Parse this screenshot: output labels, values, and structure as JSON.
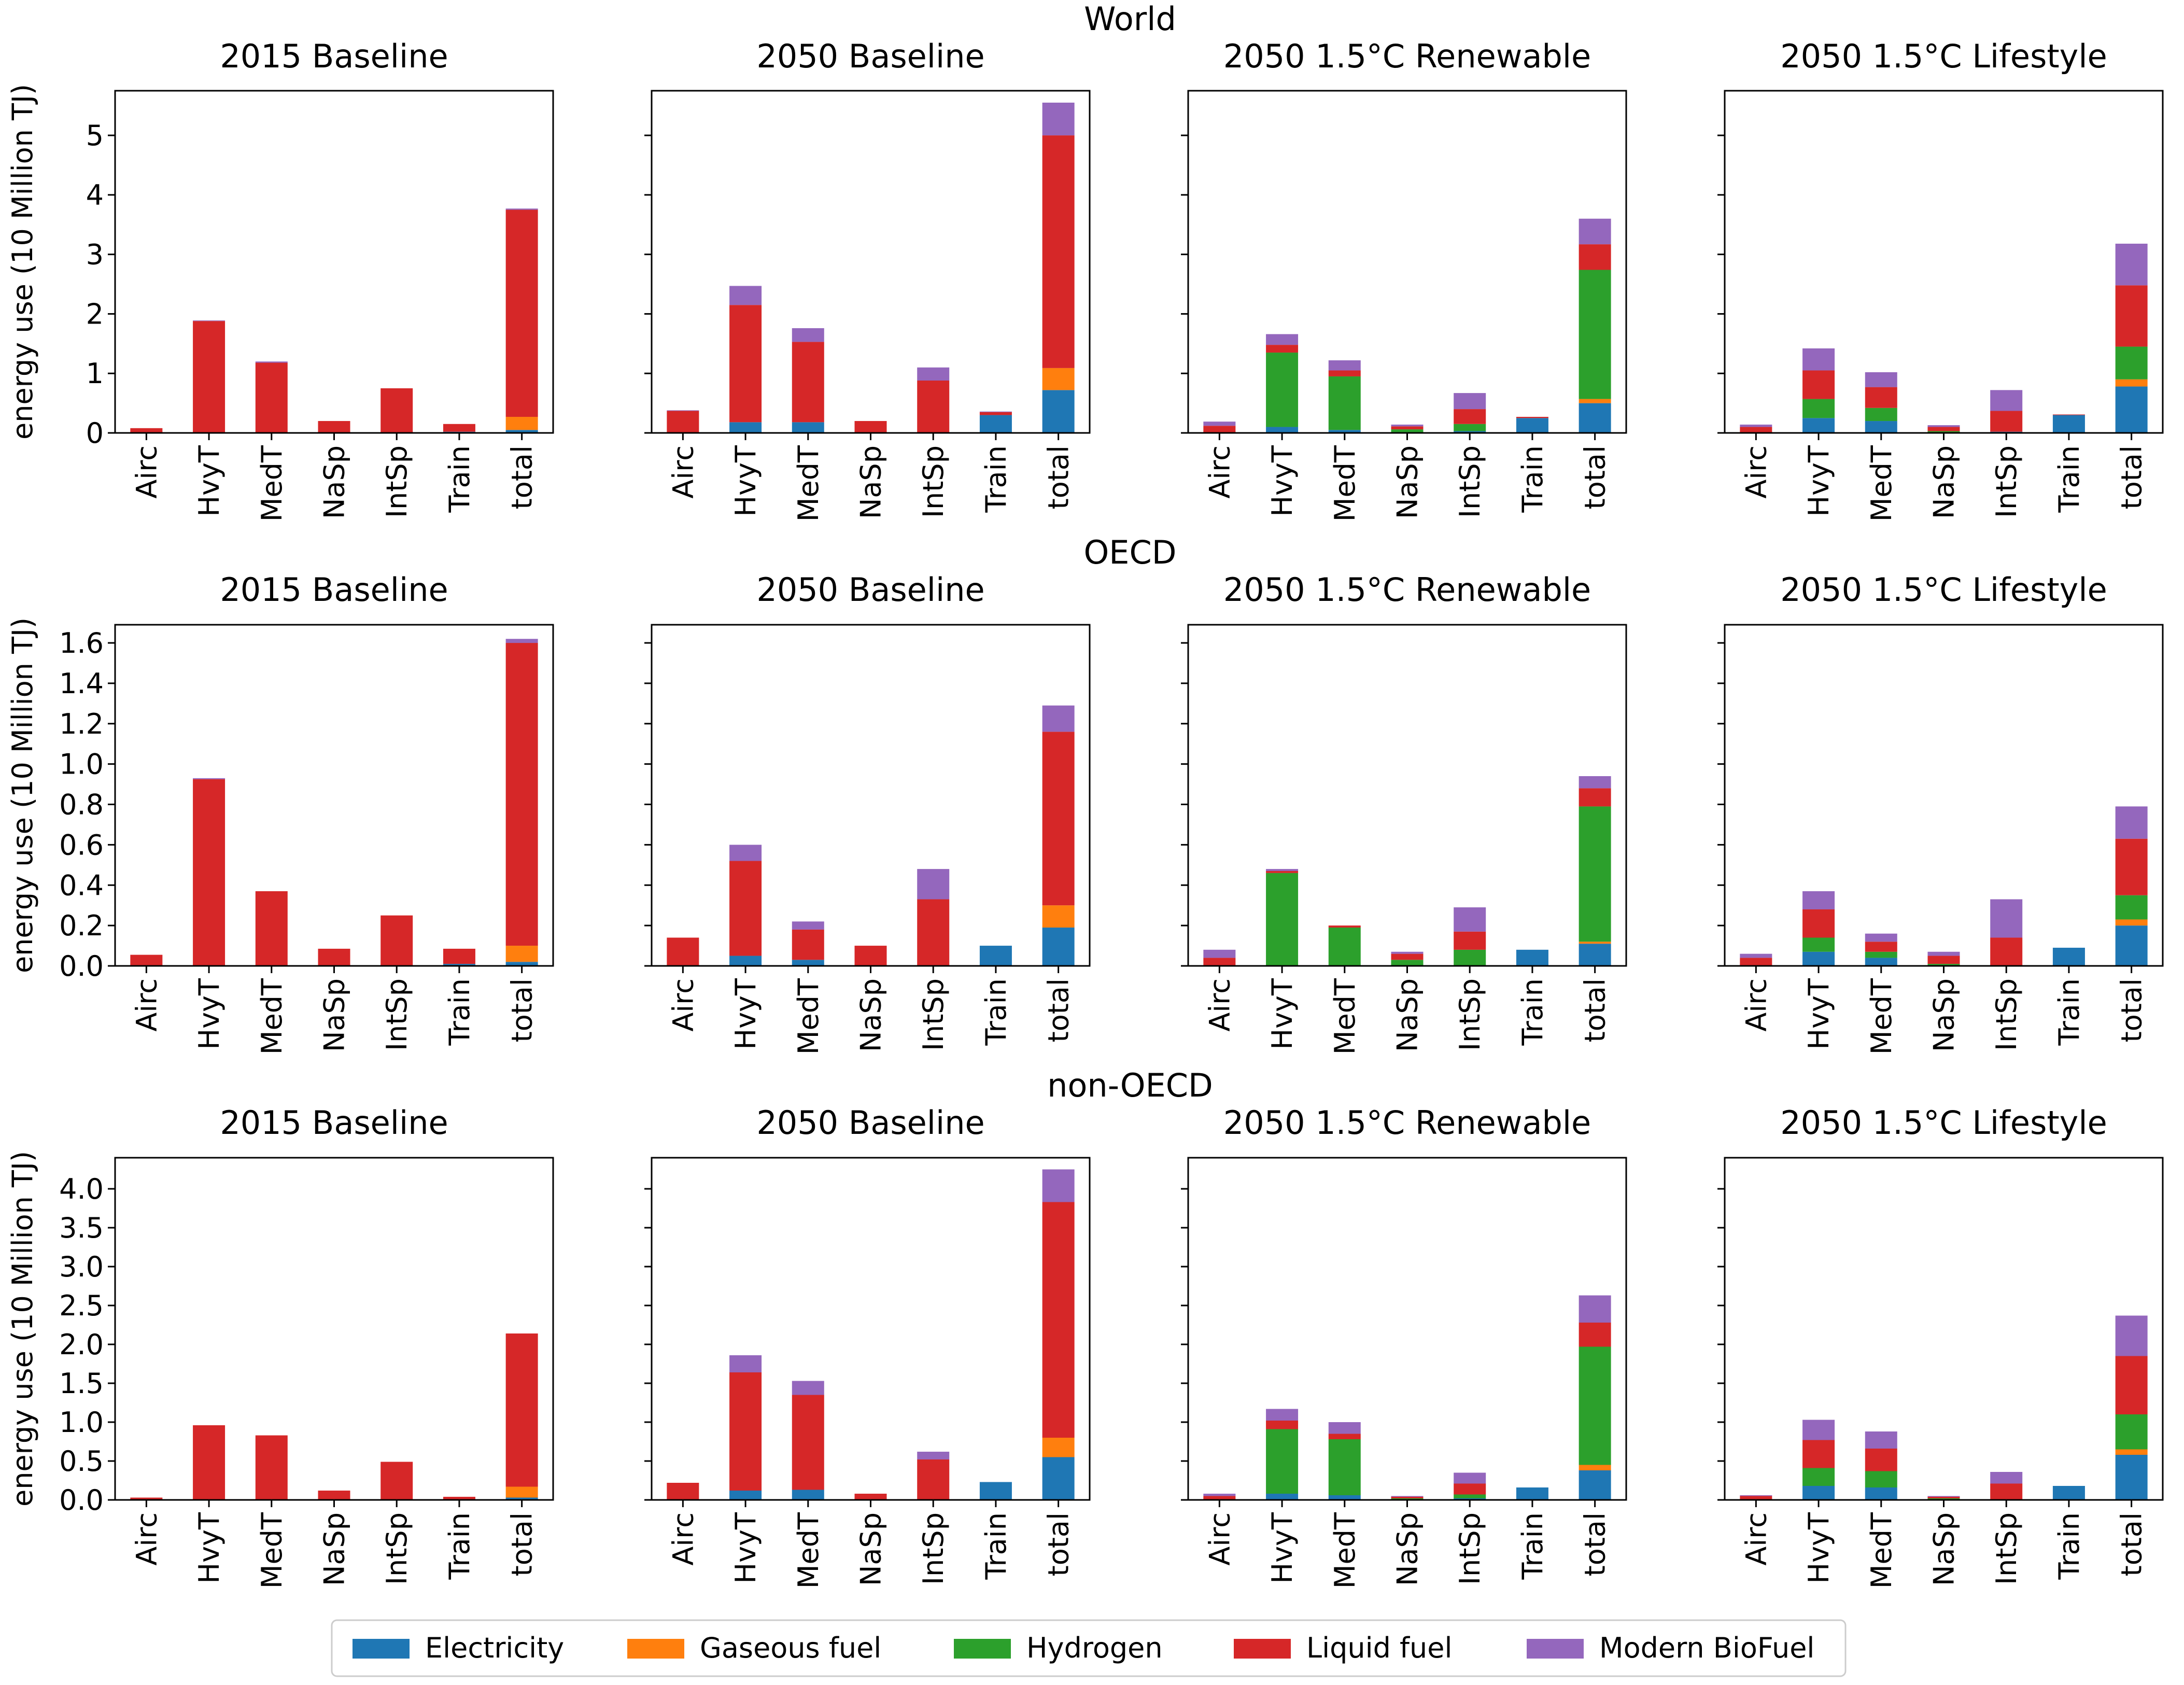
{
  "figure": {
    "ylabel": "energy use (10 Million TJ)"
  },
  "colors": {
    "Electricity": "#1f77b4",
    "Gaseous fuel": "#ff7f0e",
    "Hydrogen": "#2ca02c",
    "Liquid fuel": "#d62728",
    "Modern BioFuel": "#9467bd"
  },
  "legend": [
    "Electricity",
    "Gaseous fuel",
    "Hydrogen",
    "Liquid fuel",
    "Modern BioFuel"
  ],
  "chart_data": [
    {
      "type": "bar",
      "stacked": true,
      "region": "World",
      "ylabel": "energy use (10 Million TJ)",
      "ylim": [
        0,
        5.75
      ],
      "yticks": [
        0,
        1,
        2,
        3,
        4,
        5
      ],
      "ytick_labels": [
        "0",
        "1",
        "2",
        "3",
        "4",
        "5"
      ],
      "categories": [
        "Airc",
        "HvyT",
        "MedT",
        "NaSp",
        "IntSp",
        "Train",
        "total"
      ],
      "panels": [
        {
          "title": "2015 Baseline",
          "series": [
            {
              "name": "Electricity",
              "values": [
                0,
                0,
                0,
                0,
                0,
                0.02,
                0.05
              ]
            },
            {
              "name": "Gaseous fuel",
              "values": [
                0,
                0,
                0,
                0,
                0,
                0,
                0.22
              ]
            },
            {
              "name": "Hydrogen",
              "values": [
                0,
                0,
                0,
                0,
                0,
                0,
                0
              ]
            },
            {
              "name": "Liquid fuel",
              "values": [
                0.08,
                1.88,
                1.18,
                0.2,
                0.75,
                0.13,
                3.48
              ]
            },
            {
              "name": "Modern BioFuel",
              "values": [
                0,
                0.01,
                0.02,
                0,
                0,
                0,
                0.02
              ]
            }
          ]
        },
        {
          "title": "2050 Baseline",
          "series": [
            {
              "name": "Electricity",
              "values": [
                0,
                0.18,
                0.18,
                0,
                0,
                0.3,
                0.72
              ]
            },
            {
              "name": "Gaseous fuel",
              "values": [
                0,
                0,
                0,
                0,
                0,
                0,
                0.37
              ]
            },
            {
              "name": "Hydrogen",
              "values": [
                0,
                0,
                0,
                0,
                0,
                0,
                0
              ]
            },
            {
              "name": "Liquid fuel",
              "values": [
                0.37,
                1.97,
                1.35,
                0.2,
                0.88,
                0.05,
                3.91
              ]
            },
            {
              "name": "Modern BioFuel",
              "values": [
                0.01,
                0.32,
                0.23,
                0,
                0.22,
                0.01,
                0.55
              ]
            }
          ]
        },
        {
          "title": "2050 1.5°C Renewable",
          "series": [
            {
              "name": "Electricity",
              "values": [
                0,
                0.1,
                0.05,
                0,
                0.03,
                0.25,
                0.5
              ]
            },
            {
              "name": "Gaseous fuel",
              "values": [
                0,
                0,
                0,
                0,
                0,
                0,
                0.07
              ]
            },
            {
              "name": "Hydrogen",
              "values": [
                0,
                1.25,
                0.9,
                0.06,
                0.12,
                0,
                2.17
              ]
            },
            {
              "name": "Liquid fuel",
              "values": [
                0.12,
                0.13,
                0.1,
                0.05,
                0.25,
                0.02,
                0.43
              ]
            },
            {
              "name": "Modern BioFuel",
              "values": [
                0.07,
                0.18,
                0.17,
                0.03,
                0.27,
                0,
                0.43
              ]
            }
          ]
        },
        {
          "title": "2050 1.5°C Lifestyle",
          "series": [
            {
              "name": "Electricity",
              "values": [
                0,
                0.25,
                0.2,
                0,
                0.02,
                0.3,
                0.78
              ]
            },
            {
              "name": "Gaseous fuel",
              "values": [
                0,
                0,
                0,
                0,
                0,
                0,
                0.12
              ]
            },
            {
              "name": "Hydrogen",
              "values": [
                0,
                0.32,
                0.22,
                0.03,
                0,
                0,
                0.55
              ]
            },
            {
              "name": "Liquid fuel",
              "values": [
                0.1,
                0.48,
                0.35,
                0.07,
                0.35,
                0.01,
                1.03
              ]
            },
            {
              "name": "Modern BioFuel",
              "values": [
                0.04,
                0.37,
                0.25,
                0.03,
                0.35,
                0,
                0.7
              ]
            }
          ]
        }
      ]
    },
    {
      "type": "bar",
      "stacked": true,
      "region": "OECD",
      "ylabel": "energy use (10 Million TJ)",
      "ylim": [
        0,
        1.69
      ],
      "yticks": [
        0,
        0.2,
        0.4,
        0.6,
        0.8,
        1.0,
        1.2,
        1.4,
        1.6
      ],
      "ytick_labels": [
        "0.0",
        "0.2",
        "0.4",
        "0.6",
        "0.8",
        "1.0",
        "1.2",
        "1.4",
        "1.6"
      ],
      "categories": [
        "Airc",
        "HvyT",
        "MedT",
        "NaSp",
        "IntSp",
        "Train",
        "total"
      ],
      "panels": [
        {
          "title": "2015 Baseline",
          "series": [
            {
              "name": "Electricity",
              "values": [
                0,
                0,
                0,
                0,
                0,
                0.01,
                0.02
              ]
            },
            {
              "name": "Gaseous fuel",
              "values": [
                0,
                0,
                0,
                0,
                0,
                0,
                0.08
              ]
            },
            {
              "name": "Hydrogen",
              "values": [
                0,
                0,
                0,
                0,
                0,
                0,
                0
              ]
            },
            {
              "name": "Liquid fuel",
              "values": [
                0.055,
                0.925,
                0.37,
                0.085,
                0.25,
                0.075,
                1.5
              ]
            },
            {
              "name": "Modern BioFuel",
              "values": [
                0,
                0.005,
                0,
                0,
                0,
                0,
                0.02
              ]
            }
          ]
        },
        {
          "title": "2050 Baseline",
          "series": [
            {
              "name": "Electricity",
              "values": [
                0,
                0.05,
                0.03,
                0,
                0,
                0.1,
                0.19
              ]
            },
            {
              "name": "Gaseous fuel",
              "values": [
                0,
                0,
                0,
                0,
                0,
                0,
                0.11
              ]
            },
            {
              "name": "Hydrogen",
              "values": [
                0,
                0,
                0,
                0,
                0,
                0,
                0
              ]
            },
            {
              "name": "Liquid fuel",
              "values": [
                0.14,
                0.47,
                0.15,
                0.1,
                0.33,
                0,
                0.86
              ]
            },
            {
              "name": "Modern BioFuel",
              "values": [
                0,
                0.08,
                0.04,
                0,
                0.15,
                0,
                0.13
              ]
            }
          ]
        },
        {
          "title": "2050 1.5°C Renewable",
          "series": [
            {
              "name": "Electricity",
              "values": [
                0,
                0,
                0,
                0,
                0,
                0.08,
                0.11
              ]
            },
            {
              "name": "Gaseous fuel",
              "values": [
                0,
                0,
                0,
                0,
                0,
                0,
                0.01
              ]
            },
            {
              "name": "Hydrogen",
              "values": [
                0,
                0.46,
                0.19,
                0.03,
                0.08,
                0,
                0.67
              ]
            },
            {
              "name": "Liquid fuel",
              "values": [
                0.04,
                0.01,
                0.01,
                0.03,
                0.09,
                0,
                0.09
              ]
            },
            {
              "name": "Modern BioFuel",
              "values": [
                0.04,
                0.01,
                0,
                0.01,
                0.12,
                0,
                0.06
              ]
            }
          ]
        },
        {
          "title": "2050 1.5°C Lifestyle",
          "series": [
            {
              "name": "Electricity",
              "values": [
                0,
                0.07,
                0.04,
                0,
                0,
                0.09,
                0.2
              ]
            },
            {
              "name": "Gaseous fuel",
              "values": [
                0,
                0,
                0,
                0,
                0,
                0,
                0.03
              ]
            },
            {
              "name": "Hydrogen",
              "values": [
                0,
                0.07,
                0.03,
                0.01,
                0,
                0,
                0.12
              ]
            },
            {
              "name": "Liquid fuel",
              "values": [
                0.04,
                0.14,
                0.05,
                0.04,
                0.14,
                0,
                0.28
              ]
            },
            {
              "name": "Modern BioFuel",
              "values": [
                0.02,
                0.09,
                0.04,
                0.02,
                0.19,
                0,
                0.16
              ]
            }
          ]
        }
      ]
    },
    {
      "type": "bar",
      "stacked": true,
      "region": "non-OECD",
      "ylabel": "energy use (10 Million TJ)",
      "ylim": [
        0,
        4.4
      ],
      "yticks": [
        0,
        0.5,
        1.0,
        1.5,
        2.0,
        2.5,
        3.0,
        3.5,
        4.0
      ],
      "ytick_labels": [
        "0.0",
        "0.5",
        "1.0",
        "1.5",
        "2.0",
        "2.5",
        "3.0",
        "3.5",
        "4.0"
      ],
      "categories": [
        "Airc",
        "HvyT",
        "MedT",
        "NaSp",
        "IntSp",
        "Train",
        "total"
      ],
      "panels": [
        {
          "title": "2015 Baseline",
          "series": [
            {
              "name": "Electricity",
              "values": [
                0,
                0,
                0,
                0,
                0,
                0.01,
                0.03
              ]
            },
            {
              "name": "Gaseous fuel",
              "values": [
                0,
                0,
                0,
                0,
                0,
                0,
                0.14
              ]
            },
            {
              "name": "Hydrogen",
              "values": [
                0,
                0,
                0,
                0,
                0,
                0,
                0
              ]
            },
            {
              "name": "Liquid fuel",
              "values": [
                0.03,
                0.96,
                0.83,
                0.12,
                0.49,
                0.03,
                1.97
              ]
            },
            {
              "name": "Modern BioFuel",
              "values": [
                0,
                0,
                0,
                0,
                0,
                0,
                0
              ]
            }
          ]
        },
        {
          "title": "2050 Baseline",
          "series": [
            {
              "name": "Electricity",
              "values": [
                0,
                0.12,
                0.13,
                0,
                0,
                0.23,
                0.55
              ]
            },
            {
              "name": "Gaseous fuel",
              "values": [
                0,
                0,
                0,
                0,
                0,
                0,
                0.25
              ]
            },
            {
              "name": "Hydrogen",
              "values": [
                0,
                0,
                0,
                0,
                0,
                0,
                0
              ]
            },
            {
              "name": "Liquid fuel",
              "values": [
                0.22,
                1.52,
                1.22,
                0.08,
                0.52,
                0,
                3.03
              ]
            },
            {
              "name": "Modern BioFuel",
              "values": [
                0,
                0.22,
                0.18,
                0,
                0.1,
                0,
                0.42
              ]
            }
          ]
        },
        {
          "title": "2050 1.5°C Renewable",
          "series": [
            {
              "name": "Electricity",
              "values": [
                0,
                0.08,
                0.06,
                0,
                0.02,
                0.16,
                0.38
              ]
            },
            {
              "name": "Gaseous fuel",
              "values": [
                0,
                0,
                0,
                0,
                0,
                0,
                0.07
              ]
            },
            {
              "name": "Hydrogen",
              "values": [
                0,
                0.83,
                0.72,
                0.02,
                0.05,
                0,
                1.52
              ]
            },
            {
              "name": "Liquid fuel",
              "values": [
                0.05,
                0.11,
                0.07,
                0.02,
                0.14,
                0,
                0.31
              ]
            },
            {
              "name": "Modern BioFuel",
              "values": [
                0.03,
                0.15,
                0.15,
                0.01,
                0.14,
                0,
                0.35
              ]
            }
          ]
        },
        {
          "title": "2050 1.5°C Lifestyle",
          "series": [
            {
              "name": "Electricity",
              "values": [
                0,
                0.18,
                0.16,
                0,
                0.01,
                0.18,
                0.58
              ]
            },
            {
              "name": "Gaseous fuel",
              "values": [
                0,
                0,
                0,
                0,
                0,
                0,
                0.07
              ]
            },
            {
              "name": "Hydrogen",
              "values": [
                0,
                0.23,
                0.21,
                0.02,
                0,
                0,
                0.45
              ]
            },
            {
              "name": "Liquid fuel",
              "values": [
                0.05,
                0.36,
                0.29,
                0.02,
                0.2,
                0,
                0.75
              ]
            },
            {
              "name": "Modern BioFuel",
              "values": [
                0.01,
                0.26,
                0.22,
                0.01,
                0.15,
                0,
                0.52
              ]
            }
          ]
        }
      ]
    }
  ]
}
